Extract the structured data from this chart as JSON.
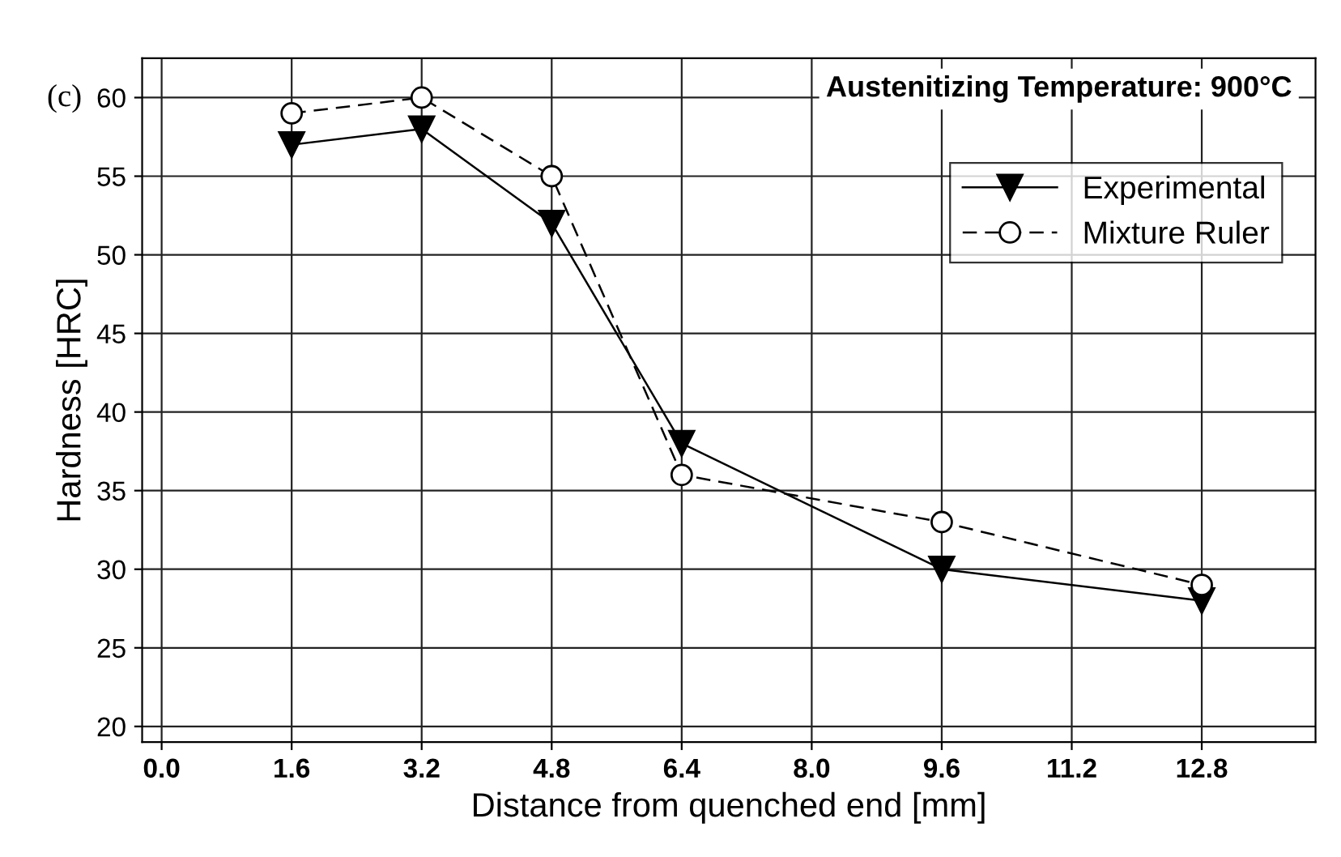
{
  "chart_data": {
    "type": "line",
    "xlabel": "Distance from quenched end [mm]",
    "ylabel": "Hardness [HRC]",
    "x": [
      1.6,
      3.2,
      4.8,
      6.4,
      9.6,
      12.8
    ],
    "series": [
      {
        "name": "Experimental",
        "color": "#000000",
        "values": [
          57,
          58,
          52,
          38,
          30,
          28
        ],
        "marker": "triangle",
        "line_style": "solid"
      },
      {
        "name": "Mixture Ruler",
        "color": "#000000",
        "values": [
          59,
          60,
          55,
          36,
          33,
          29
        ],
        "marker": "circle",
        "line_style": "dashed"
      }
    ],
    "xlim": [
      -0.24,
      14.2
    ],
    "xticks": [
      {
        "value": 0,
        "label": "0.0"
      },
      1.6,
      3.2,
      4.8,
      6.4,
      {
        "value": 8,
        "label": "8.0"
      },
      9.6,
      11.2,
      12.8
    ],
    "ylim": [
      19,
      62.5
    ],
    "yticks": [
      20,
      25,
      30,
      35,
      40,
      45,
      50,
      55,
      60
    ],
    "grid": true,
    "legend": "top right",
    "annotations": [
      "Austenitizing Temperature: 900°C",
      "(c)"
    ]
  }
}
